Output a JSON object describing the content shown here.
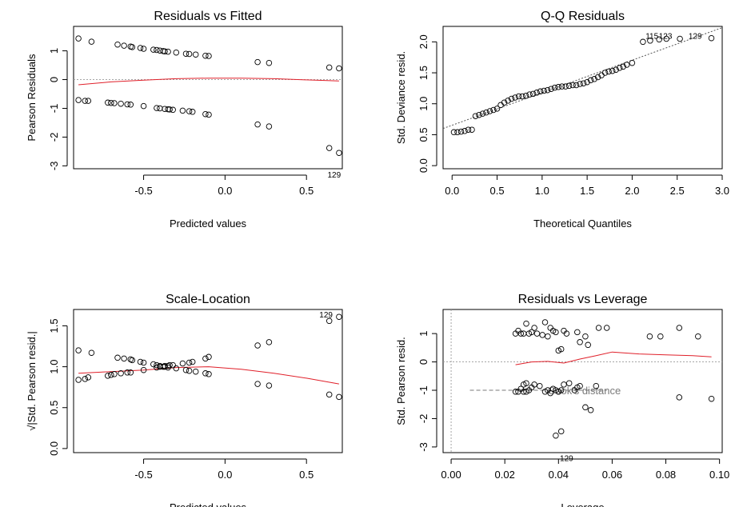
{
  "chart_data": [
    {
      "type": "scatter",
      "title": "Residuals vs Fitted",
      "xlabel": "Predicted values",
      "ylabel": "Pearson Residuals",
      "xlim": [
        -0.93,
        0.72
      ],
      "ylim": [
        -3.1,
        1.85
      ],
      "xticks": [
        -0.5,
        0.0,
        0.5
      ],
      "xtick_labels": [
        "-0.5",
        "0.0",
        "0.5"
      ],
      "yticks": [
        -3,
        -2,
        -1,
        0,
        1
      ],
      "ytick_labels": [
        "-3",
        "-2",
        "-1",
        "0",
        "1"
      ],
      "reference_line_y": 0,
      "points": {
        "x": [
          -0.9,
          -0.82,
          -0.66,
          -0.62,
          -0.58,
          -0.57,
          -0.52,
          -0.5,
          -0.44,
          -0.42,
          -0.4,
          -0.38,
          -0.37,
          -0.35,
          -0.3,
          -0.24,
          -0.22,
          -0.18,
          -0.12,
          -0.1,
          0.2,
          0.27,
          0.64,
          0.7,
          -0.9,
          -0.86,
          -0.84,
          -0.72,
          -0.7,
          -0.68,
          -0.64,
          -0.6,
          -0.58,
          -0.5,
          -0.42,
          -0.4,
          -0.37,
          -0.35,
          -0.34,
          -0.32,
          -0.26,
          -0.22,
          -0.2,
          -0.12,
          -0.1,
          0.2,
          0.27,
          0.64,
          0.7
        ],
        "y": [
          1.43,
          1.32,
          1.22,
          1.18,
          1.15,
          1.13,
          1.1,
          1.07,
          1.04,
          1.03,
          1.01,
          0.99,
          0.98,
          0.97,
          0.94,
          0.9,
          0.89,
          0.87,
          0.83,
          0.82,
          0.61,
          0.58,
          0.42,
          0.39,
          -0.71,
          -0.74,
          -0.74,
          -0.8,
          -0.81,
          -0.82,
          -0.84,
          -0.86,
          -0.87,
          -0.92,
          -0.99,
          -1.0,
          -1.02,
          -1.03,
          -1.04,
          -1.05,
          -1.08,
          -1.1,
          -1.12,
          -1.2,
          -1.22,
          -1.56,
          -1.63,
          -2.38,
          -2.55
        ]
      },
      "smooth_line": {
        "x": [
          -0.9,
          -0.7,
          -0.5,
          -0.3,
          -0.1,
          0.1,
          0.3,
          0.5,
          0.7
        ],
        "y": [
          -0.18,
          -0.08,
          -0.02,
          0.03,
          0.05,
          0.05,
          0.03,
          -0.01,
          -0.05
        ]
      },
      "annotations": [
        {
          "text": "129",
          "x": 0.67,
          "y": -3.4
        }
      ]
    },
    {
      "type": "scatter",
      "title": "Q-Q Residuals",
      "xlabel": "Theoretical Quantiles",
      "ylabel": "Std. Deviance resid.",
      "xlim": [
        -0.1,
        3.0
      ],
      "ylim": [
        -0.05,
        2.25
      ],
      "xticks": [
        0.0,
        0.5,
        1.0,
        1.5,
        2.0,
        2.5,
        3.0
      ],
      "xtick_labels": [
        "0.0",
        "0.5",
        "1.0",
        "1.5",
        "2.0",
        "2.5",
        "3.0"
      ],
      "yticks": [
        0.0,
        0.5,
        1.0,
        1.5,
        2.0
      ],
      "ytick_labels": [
        "0.0",
        "0.5",
        "1.0",
        "1.5",
        "2.0"
      ],
      "points": {
        "x": [
          0.02,
          0.06,
          0.1,
          0.14,
          0.18,
          0.22,
          0.26,
          0.3,
          0.34,
          0.38,
          0.42,
          0.46,
          0.5,
          0.54,
          0.58,
          0.62,
          0.66,
          0.7,
          0.74,
          0.78,
          0.82,
          0.86,
          0.9,
          0.94,
          0.98,
          1.02,
          1.06,
          1.1,
          1.14,
          1.18,
          1.22,
          1.26,
          1.3,
          1.34,
          1.38,
          1.42,
          1.46,
          1.5,
          1.54,
          1.58,
          1.62,
          1.66,
          1.7,
          1.74,
          1.78,
          1.82,
          1.86,
          1.9,
          1.94,
          2.0,
          2.12,
          2.2,
          2.3,
          2.38,
          2.53,
          2.88
        ],
        "y": [
          0.54,
          0.54,
          0.55,
          0.56,
          0.58,
          0.58,
          0.8,
          0.82,
          0.84,
          0.86,
          0.88,
          0.9,
          0.92,
          0.98,
          1.02,
          1.05,
          1.08,
          1.1,
          1.12,
          1.12,
          1.13,
          1.15,
          1.16,
          1.18,
          1.2,
          1.21,
          1.22,
          1.24,
          1.26,
          1.27,
          1.28,
          1.28,
          1.29,
          1.3,
          1.3,
          1.32,
          1.33,
          1.35,
          1.38,
          1.4,
          1.43,
          1.46,
          1.5,
          1.52,
          1.53,
          1.55,
          1.58,
          1.6,
          1.63,
          1.66,
          2.0,
          2.02,
          2.04,
          2.05,
          2.05,
          2.06
        ]
      },
      "reference_line": {
        "x": [
          -0.1,
          3.0
        ],
        "y": [
          0.6,
          2.23
        ]
      },
      "annotations": [
        {
          "text": "115",
          "x": 2.22,
          "y": 2.05
        },
        {
          "text": "123",
          "x": 2.37,
          "y": 2.05
        },
        {
          "text": "129",
          "x": 2.7,
          "y": 2.05
        }
      ]
    },
    {
      "type": "scatter",
      "title": "Scale-Location",
      "xlabel": "Predicted values",
      "ylabel": "√|Std. Pearson resid.|",
      "xlim": [
        -0.93,
        0.72
      ],
      "ylim": [
        -0.05,
        1.7
      ],
      "xticks": [
        -0.5,
        0.0,
        0.5
      ],
      "xtick_labels": [
        "-0.5",
        "0.0",
        "0.5"
      ],
      "yticks": [
        0.0,
        0.5,
        1.0,
        1.5
      ],
      "ytick_labels": [
        "0.0",
        "0.5",
        "1.0",
        "1.5"
      ],
      "points": {
        "x": [
          -0.9,
          -0.82,
          -0.66,
          -0.62,
          -0.58,
          -0.57,
          -0.52,
          -0.5,
          -0.44,
          -0.42,
          -0.4,
          -0.38,
          -0.37,
          -0.35,
          -0.3,
          -0.24,
          -0.22,
          -0.18,
          -0.12,
          -0.1,
          0.2,
          0.27,
          0.64,
          0.7,
          -0.9,
          -0.86,
          -0.84,
          -0.72,
          -0.7,
          -0.68,
          -0.64,
          -0.6,
          -0.58,
          -0.5,
          -0.42,
          -0.4,
          -0.37,
          -0.35,
          -0.34,
          -0.32,
          -0.26,
          -0.22,
          -0.2,
          -0.12,
          -0.1,
          0.2,
          0.27,
          0.64,
          0.7
        ],
        "y": [
          1.2,
          1.17,
          1.11,
          1.1,
          1.09,
          1.08,
          1.06,
          1.05,
          1.03,
          1.02,
          1.01,
          1.0,
          1.0,
          0.99,
          0.98,
          0.96,
          0.95,
          0.94,
          0.92,
          0.91,
          0.79,
          0.77,
          0.66,
          0.63,
          0.84,
          0.85,
          0.87,
          0.89,
          0.9,
          0.91,
          0.92,
          0.93,
          0.93,
          0.96,
          0.99,
          1.0,
          1.01,
          1.01,
          1.02,
          1.02,
          1.04,
          1.05,
          1.06,
          1.1,
          1.12,
          1.26,
          1.3,
          1.56,
          1.61
        ]
      },
      "smooth_line": {
        "x": [
          -0.9,
          -0.7,
          -0.5,
          -0.3,
          -0.1,
          0.1,
          0.3,
          0.5,
          0.7
        ],
        "y": [
          0.92,
          0.94,
          0.96,
          0.99,
          1.0,
          0.97,
          0.92,
          0.86,
          0.79
        ]
      },
      "annotations": [
        {
          "text": "129",
          "x": 0.62,
          "y": 1.6
        }
      ]
    },
    {
      "type": "scatter",
      "title": "Residuals vs Leverage",
      "xlabel": "Leverage",
      "ylabel": "Std. Pearson resid.",
      "xlim": [
        -0.003,
        0.101
      ],
      "ylim": [
        -3.2,
        1.85
      ],
      "xticks": [
        0.0,
        0.02,
        0.04,
        0.06,
        0.08,
        0.1
      ],
      "xtick_labels": [
        "0.00",
        "0.02",
        "0.04",
        "0.06",
        "0.08",
        "0.10"
      ],
      "yticks": [
        -3,
        -2,
        -1,
        0,
        1
      ],
      "ytick_labels": [
        "-3",
        "-2",
        "-1",
        "0",
        "1"
      ],
      "reference_line_y": 0,
      "reference_line_x": 0,
      "points": {
        "x": [
          0.024,
          0.025,
          0.026,
          0.027,
          0.028,
          0.029,
          0.03,
          0.031,
          0.032,
          0.034,
          0.035,
          0.036,
          0.037,
          0.038,
          0.039,
          0.04,
          0.041,
          0.042,
          0.043,
          0.047,
          0.048,
          0.05,
          0.051,
          0.055,
          0.058,
          0.074,
          0.078,
          0.085,
          0.092,
          0.024,
          0.025,
          0.026,
          0.027,
          0.027,
          0.028,
          0.028,
          0.029,
          0.03,
          0.031,
          0.033,
          0.035,
          0.036,
          0.037,
          0.038,
          0.039,
          0.04,
          0.041,
          0.042,
          0.044,
          0.046,
          0.047,
          0.048,
          0.05,
          0.052,
          0.054,
          0.085,
          0.097,
          0.039,
          0.041
        ],
        "y": [
          1.0,
          1.1,
          1.0,
          1.0,
          1.35,
          1.0,
          1.05,
          1.2,
          1.0,
          0.95,
          1.4,
          0.9,
          1.2,
          1.1,
          1.05,
          0.4,
          0.45,
          1.1,
          1.0,
          1.05,
          0.7,
          0.9,
          0.6,
          1.2,
          1.2,
          0.9,
          0.9,
          1.2,
          0.9,
          -1.05,
          -1.05,
          -0.95,
          -0.8,
          -1.05,
          -0.75,
          -1.05,
          -1.0,
          -0.9,
          -0.8,
          -0.85,
          -1.05,
          -1.0,
          -1.1,
          -0.95,
          -1.0,
          -1.05,
          -1.0,
          -0.8,
          -0.75,
          -1.0,
          -0.9,
          -0.85,
          -1.6,
          -1.7,
          -0.85,
          -1.25,
          -1.3,
          -2.6,
          -2.45
        ]
      },
      "smooth_line": {
        "x": [
          0.024,
          0.03,
          0.036,
          0.042,
          0.048,
          0.054,
          0.06,
          0.07,
          0.08,
          0.09,
          0.097
        ],
        "y": [
          -0.1,
          0.0,
          0.02,
          -0.04,
          0.1,
          0.22,
          0.35,
          0.28,
          0.25,
          0.22,
          0.18
        ]
      },
      "cook_line": {
        "x": [
          0.007,
          0.058
        ],
        "y": [
          -1.0,
          -1.0
        ]
      },
      "cook_label": "Cook's distance",
      "annotations": [
        {
          "text": "129",
          "x": 0.043,
          "y": -3.5
        }
      ]
    }
  ]
}
